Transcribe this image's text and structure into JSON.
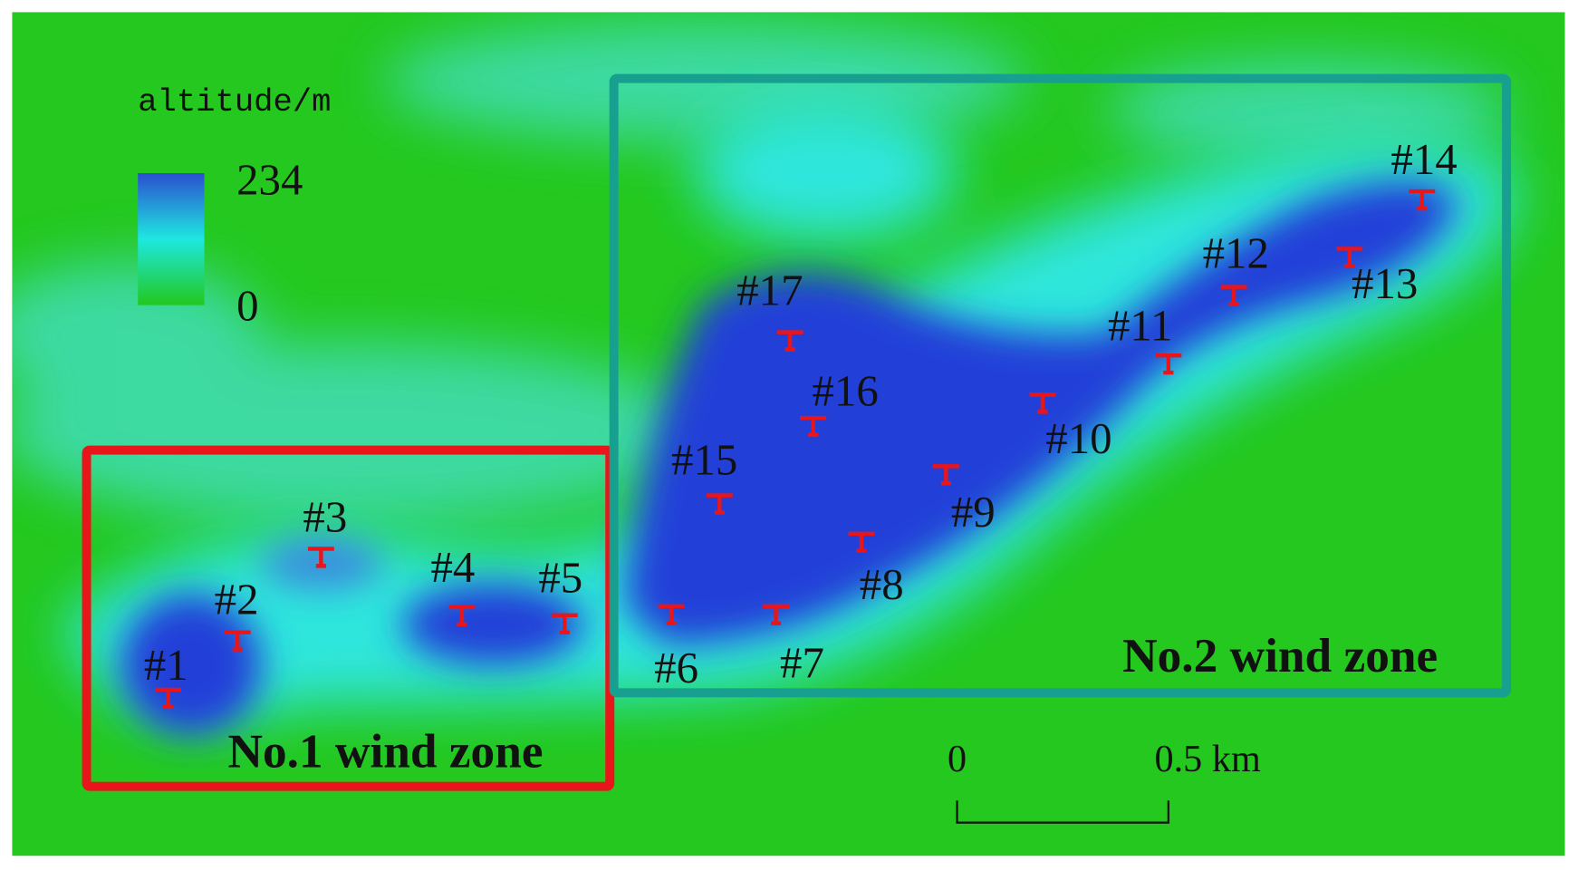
{
  "legend": {
    "title": "altitude/m",
    "max": 234,
    "min": 0
  },
  "zones": [
    {
      "label": "No.1 wind zone"
    },
    {
      "label": "No.2 wind zone"
    }
  ],
  "turbines": [
    {
      "label": "#1"
    },
    {
      "label": "#2"
    },
    {
      "label": "#3"
    },
    {
      "label": "#4"
    },
    {
      "label": "#5"
    },
    {
      "label": "#6"
    },
    {
      "label": "#7"
    },
    {
      "label": "#8"
    },
    {
      "label": "#9"
    },
    {
      "label": "#10"
    },
    {
      "label": "#11"
    },
    {
      "label": "#12"
    },
    {
      "label": "#13"
    },
    {
      "label": "#14"
    },
    {
      "label": "#15"
    },
    {
      "label": "#16"
    },
    {
      "label": "#17"
    }
  ],
  "scale_bar": {
    "start": "0",
    "end": "0.5 km"
  }
}
